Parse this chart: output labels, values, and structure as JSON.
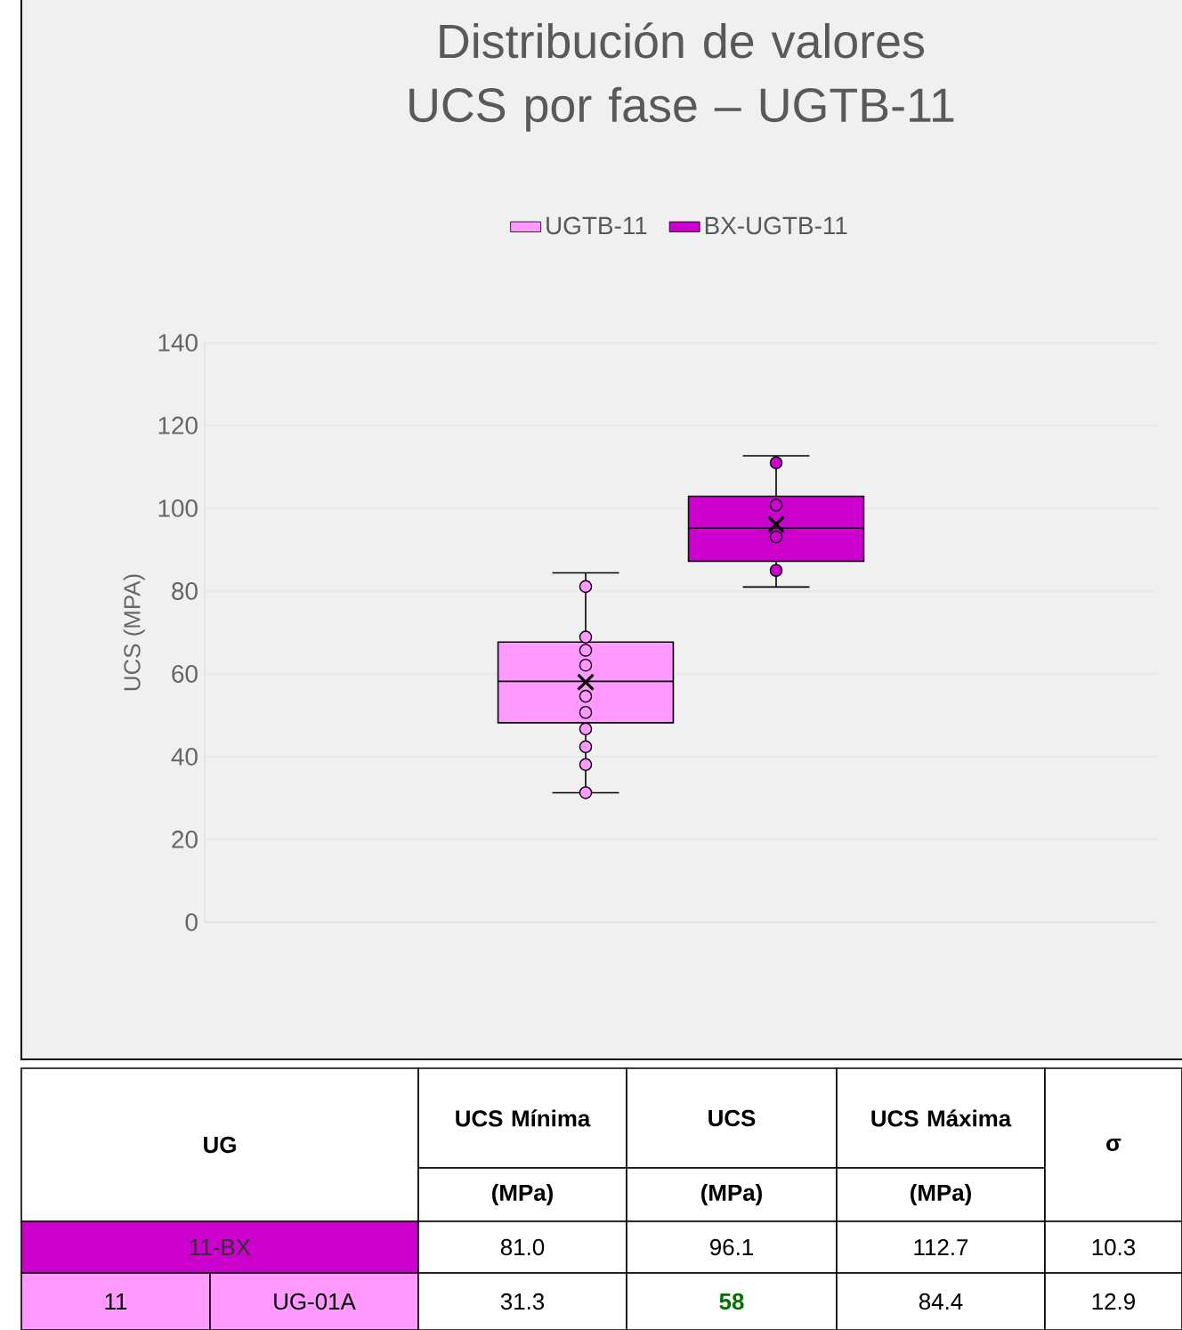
{
  "chart_data": {
    "type": "box",
    "title": "Distribución de valores UCS por fase – UGTB-11",
    "ylabel": "UCS (MPA)",
    "categories": [
      null
    ],
    "series": [
      {
        "name": "UGTB-11",
        "color": "#ff99ff",
        "boxes": [
          {
            "low": 31.3,
            "q1": 48.2,
            "median": 58.2,
            "q3": 67.7,
            "high": 84.4,
            "mean": 58,
            "outliers": [
              81.1,
              68.9,
              65.7,
              62.1,
              54.6,
              50.7,
              46.7,
              42.4,
              38.1,
              31.3
            ]
          }
        ]
      },
      {
        "name": "BX-UGTB-11",
        "color": "#cc00cc",
        "boxes": [
          {
            "low": 81.0,
            "q1": 87.2,
            "median": 95.2,
            "q3": 102.9,
            "high": 112.7,
            "mean": 96.1,
            "outliers": [
              111.0,
              100.8,
              93.1,
              85.0
            ]
          }
        ]
      }
    ],
    "ylim": [
      0,
      140
    ],
    "yticks": [
      0,
      20,
      40,
      60,
      80,
      100,
      120,
      140
    ],
    "grid": "y",
    "legend": "top",
    "marker": "circle",
    "annotations": [
      "UG",
      "UCS Mínima",
      "(MPa)",
      "UCS",
      "(MPa)",
      "UCS Máxima",
      "(MPa)",
      "σ",
      "11-BX",
      "81.0",
      "96.1",
      "112.7",
      "10.3",
      "11",
      "UG-01A",
      "31.3",
      "58",
      "84.4",
      "12.9"
    ]
  }
}
